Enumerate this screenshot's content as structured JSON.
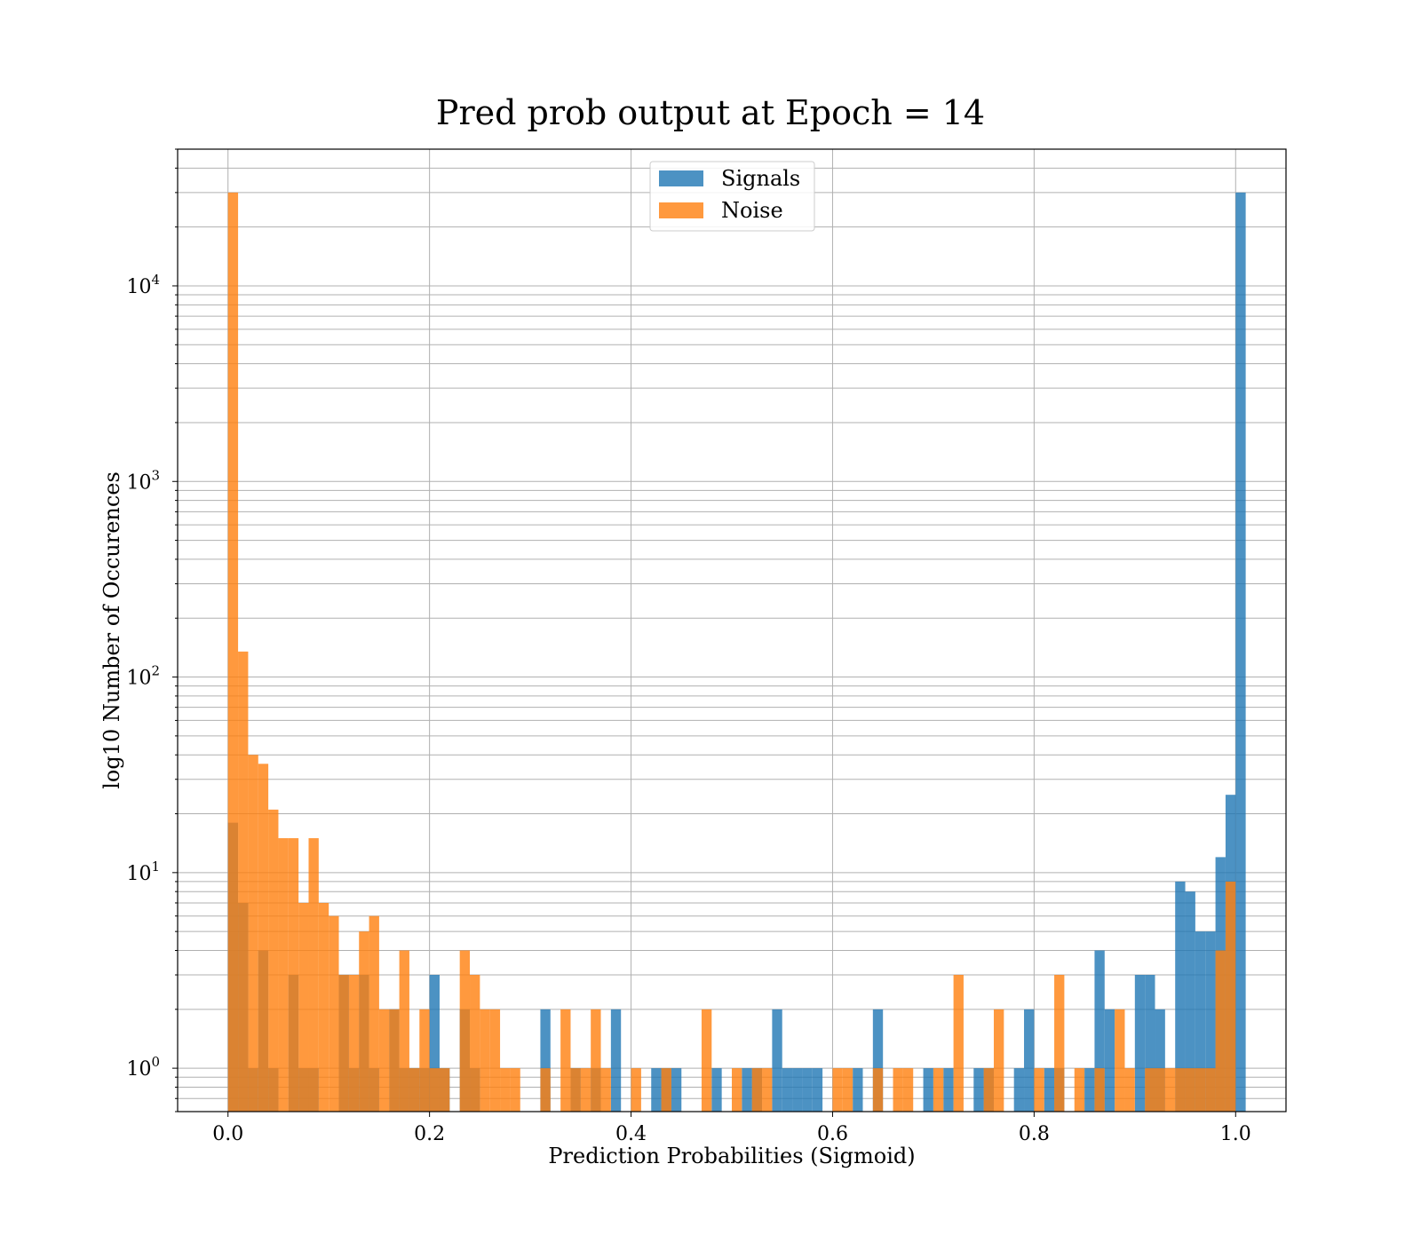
{
  "chart_data": {
    "type": "bar",
    "title": "Pred prob output at Epoch = 14",
    "xlabel": "Prediction Probabilities (Sigmoid)",
    "ylabel": "log10 Number of Occurences",
    "xlim": [
      -0.05,
      1.05
    ],
    "ylim": [
      0.6,
      50000
    ],
    "yscale": "log",
    "bin_width": 0.01,
    "grid": true,
    "legend_position": "top-center",
    "x_ticks": [
      "0.0",
      "0.2",
      "0.4",
      "0.6",
      "0.8",
      "1.0"
    ],
    "y_ticks": [
      {
        "base": "10",
        "exp": "0"
      },
      {
        "base": "10",
        "exp": "1"
      },
      {
        "base": "10",
        "exp": "2"
      },
      {
        "base": "10",
        "exp": "3"
      },
      {
        "base": "10",
        "exp": "4"
      }
    ],
    "series": [
      {
        "name": "Signals",
        "color": "#1f77b4",
        "bins": [
          [
            0.0,
            18
          ],
          [
            0.01,
            7
          ],
          [
            0.02,
            1
          ],
          [
            0.03,
            4
          ],
          [
            0.04,
            1
          ],
          [
            0.06,
            3
          ],
          [
            0.07,
            1
          ],
          [
            0.08,
            1
          ],
          [
            0.11,
            3
          ],
          [
            0.12,
            1
          ],
          [
            0.13,
            3
          ],
          [
            0.14,
            1
          ],
          [
            0.16,
            2
          ],
          [
            0.17,
            1
          ],
          [
            0.18,
            1
          ],
          [
            0.19,
            1
          ],
          [
            0.2,
            3
          ],
          [
            0.21,
            1
          ],
          [
            0.23,
            2
          ],
          [
            0.24,
            1
          ],
          [
            0.31,
            2
          ],
          [
            0.34,
            1
          ],
          [
            0.36,
            1
          ],
          [
            0.38,
            2
          ],
          [
            0.42,
            1
          ],
          [
            0.43,
            1
          ],
          [
            0.44,
            1
          ],
          [
            0.48,
            1
          ],
          [
            0.51,
            1
          ],
          [
            0.52,
            1
          ],
          [
            0.54,
            2
          ],
          [
            0.55,
            1
          ],
          [
            0.56,
            1
          ],
          [
            0.57,
            1
          ],
          [
            0.58,
            1
          ],
          [
            0.62,
            1
          ],
          [
            0.64,
            2
          ],
          [
            0.69,
            1
          ],
          [
            0.71,
            1
          ],
          [
            0.74,
            1
          ],
          [
            0.75,
            1
          ],
          [
            0.78,
            1
          ],
          [
            0.79,
            2
          ],
          [
            0.81,
            1
          ],
          [
            0.82,
            1
          ],
          [
            0.85,
            1
          ],
          [
            0.86,
            4
          ],
          [
            0.87,
            2
          ],
          [
            0.9,
            3
          ],
          [
            0.91,
            3
          ],
          [
            0.92,
            2
          ],
          [
            0.94,
            9
          ],
          [
            0.95,
            8
          ],
          [
            0.96,
            5
          ],
          [
            0.97,
            5
          ],
          [
            0.98,
            12
          ],
          [
            0.99,
            25
          ],
          [
            1.0,
            30000
          ]
        ]
      },
      {
        "name": "Noise",
        "color": "#ff7f0e",
        "bins": [
          [
            0.0,
            30000
          ],
          [
            0.01,
            135
          ],
          [
            0.02,
            40
          ],
          [
            0.03,
            36
          ],
          [
            0.04,
            21
          ],
          [
            0.05,
            15
          ],
          [
            0.06,
            15
          ],
          [
            0.07,
            7
          ],
          [
            0.08,
            15
          ],
          [
            0.09,
            7
          ],
          [
            0.1,
            6
          ],
          [
            0.11,
            3
          ],
          [
            0.12,
            3
          ],
          [
            0.13,
            5
          ],
          [
            0.14,
            6
          ],
          [
            0.15,
            2
          ],
          [
            0.16,
            2
          ],
          [
            0.17,
            4
          ],
          [
            0.18,
            1
          ],
          [
            0.19,
            2
          ],
          [
            0.2,
            1
          ],
          [
            0.21,
            1
          ],
          [
            0.23,
            4
          ],
          [
            0.24,
            3
          ],
          [
            0.25,
            2
          ],
          [
            0.26,
            2
          ],
          [
            0.27,
            1
          ],
          [
            0.28,
            1
          ],
          [
            0.31,
            1
          ],
          [
            0.33,
            2
          ],
          [
            0.34,
            1
          ],
          [
            0.35,
            1
          ],
          [
            0.36,
            2
          ],
          [
            0.37,
            1
          ],
          [
            0.4,
            1
          ],
          [
            0.43,
            1
          ],
          [
            0.47,
            2
          ],
          [
            0.5,
            1
          ],
          [
            0.52,
            1
          ],
          [
            0.53,
            1
          ],
          [
            0.6,
            1
          ],
          [
            0.61,
            1
          ],
          [
            0.64,
            1
          ],
          [
            0.66,
            1
          ],
          [
            0.67,
            1
          ],
          [
            0.7,
            1
          ],
          [
            0.72,
            3
          ],
          [
            0.75,
            1
          ],
          [
            0.76,
            2
          ],
          [
            0.8,
            1
          ],
          [
            0.82,
            3
          ],
          [
            0.84,
            1
          ],
          [
            0.86,
            1
          ],
          [
            0.88,
            2
          ],
          [
            0.89,
            1
          ],
          [
            0.91,
            1
          ],
          [
            0.92,
            1
          ],
          [
            0.93,
            1
          ],
          [
            0.94,
            1
          ],
          [
            0.95,
            1
          ],
          [
            0.96,
            1
          ],
          [
            0.97,
            1
          ],
          [
            0.98,
            4
          ],
          [
            0.99,
            9
          ]
        ]
      }
    ]
  }
}
